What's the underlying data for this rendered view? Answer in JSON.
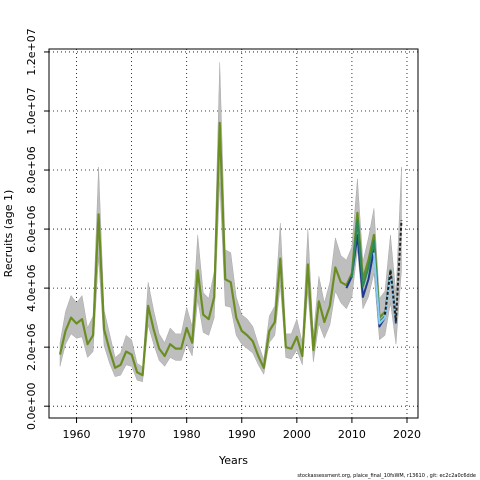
{
  "chart_data": {
    "type": "line",
    "xlabel": "Years",
    "ylabel": "Recruits (age 1)",
    "xlim": [
      1955,
      2022
    ],
    "ylim": [
      -400000,
      12100000
    ],
    "x_ticks": [
      1960,
      1970,
      1980,
      1990,
      2000,
      2010,
      2020
    ],
    "x_tick_labels": [
      "1960",
      "1970",
      "1980",
      "1990",
      "2000",
      "2010",
      "2020"
    ],
    "y_ticks": [
      0,
      2000000,
      4000000,
      6000000,
      8000000,
      10000000,
      12000000
    ],
    "y_tick_labels": [
      "0.0e+00",
      "2.0e+06",
      "4.0e+06",
      "6.0e+06",
      "8.0e+06",
      "1.0e+07",
      "1.2e+07"
    ],
    "grid": true,
    "grid_style": "dotted",
    "band_color": "#bebebe",
    "base_series": {
      "x": [
        1957,
        1958,
        1959,
        1960,
        1961,
        1962,
        1963,
        1964,
        1965,
        1966,
        1967,
        1968,
        1969,
        1970,
        1971,
        1972,
        1973,
        1974,
        1975,
        1976,
        1977,
        1978,
        1979,
        1980,
        1981,
        1982,
        1983,
        1984,
        1985,
        1986,
        1987,
        1988,
        1989,
        1990,
        1991,
        1992,
        1993,
        1994,
        1995,
        1996,
        1997,
        1998,
        1999,
        2000,
        2001,
        2002,
        2003,
        2004,
        2005,
        2006,
        2007,
        2008,
        2009,
        2010,
        2011,
        2012,
        2013,
        2014,
        2015,
        2016,
        2017,
        2018,
        2019
      ],
      "y": [
        1750000,
        2550000,
        3000000,
        2800000,
        2950000,
        2100000,
        2400000,
        6500000,
        2600000,
        1900000,
        1300000,
        1400000,
        1850000,
        1750000,
        1150000,
        1050000,
        3400000,
        2600000,
        1950000,
        1700000,
        2100000,
        1950000,
        1950000,
        2650000,
        2150000,
        4600000,
        3100000,
        2950000,
        3700000,
        9600000,
        4300000,
        4200000,
        3000000,
        2550000,
        2400000,
        2200000,
        1700000,
        1300000,
        2550000,
        2850000,
        5000000,
        2000000,
        1950000,
        2350000,
        1700000,
        4800000,
        1900000,
        3550000,
        2850000,
        3400000,
        4700000,
        4200000,
        4050000,
        4450000,
        6500000,
        4100000,
        4650000,
        5600000,
        2900000,
        3100000,
        4600000,
        2900000,
        6300000
      ],
      "lower": [
        1350000,
        2100000,
        2450000,
        2300000,
        2350000,
        1650000,
        1850000,
        5050000,
        2050000,
        1450000,
        1000000,
        1050000,
        1400000,
        1350000,
        880000,
        830000,
        2750000,
        2100000,
        1550000,
        1350000,
        1650000,
        1550000,
        1550000,
        2100000,
        1700000,
        3600000,
        2500000,
        2400000,
        3000000,
        7600000,
        3400000,
        3350000,
        2400000,
        2100000,
        1950000,
        1800000,
        1400000,
        1080000,
        2150000,
        2400000,
        4100000,
        1650000,
        1600000,
        1900000,
        1400000,
        3900000,
        1500000,
        2800000,
        2300000,
        2750000,
        3900000,
        3500000,
        3300000,
        3700000,
        5300000,
        3300000,
        3700000,
        4500000,
        2250000,
        2400000,
        3500000,
        2100000,
        4600000
      ],
      "upper": [
        2150000,
        3200000,
        3750000,
        3500000,
        3750000,
        2650000,
        3050000,
        8100000,
        3250000,
        2450000,
        1650000,
        1800000,
        2400000,
        2250000,
        1450000,
        1330000,
        4200000,
        3250000,
        2450000,
        2150000,
        2650000,
        2450000,
        2450000,
        3350000,
        2700000,
        5800000,
        3850000,
        3650000,
        4550000,
        11650000,
        5300000,
        5200000,
        3700000,
        3100000,
        2950000,
        2700000,
        2100000,
        1580000,
        3050000,
        3400000,
        6200000,
        2450000,
        2450000,
        2950000,
        2150000,
        6000000,
        2400000,
        4400000,
        3500000,
        4200000,
        5700000,
        5100000,
        4950000,
        5400000,
        7700000,
        4900000,
        5700000,
        6700000,
        3650000,
        3900000,
        5800000,
        3800000,
        8100000
      ]
    },
    "series": [
      {
        "name": "",
        "color": "#6b8e23",
        "x": [
          1957,
          1958,
          1959,
          1960,
          1961,
          1962,
          1963,
          1964,
          1965,
          1966,
          1967,
          1968,
          1969,
          1970,
          1971,
          1972,
          1973,
          1974,
          1975,
          1976,
          1977,
          1978,
          1979,
          1980,
          1981,
          1982,
          1983,
          1984,
          1985,
          1986,
          1987,
          1988,
          1989,
          1990,
          1991,
          1992,
          1993,
          1994,
          1995,
          1996,
          1997,
          1998,
          1999,
          2000,
          2001,
          2002,
          2003,
          2004,
          2005,
          2006,
          2007,
          2008,
          2009,
          2010,
          2011,
          2012,
          2013,
          2014,
          2015,
          2016
        ],
        "y": [
          1750000,
          2550000,
          3000000,
          2800000,
          2950000,
          2100000,
          2400000,
          6500000,
          2600000,
          1900000,
          1300000,
          1400000,
          1850000,
          1750000,
          1150000,
          1050000,
          3400000,
          2600000,
          1950000,
          1700000,
          2100000,
          1950000,
          1950000,
          2650000,
          2150000,
          4600000,
          3100000,
          2950000,
          3700000,
          9600000,
          4300000,
          4200000,
          3000000,
          2550000,
          2400000,
          2200000,
          1700000,
          1300000,
          2550000,
          2850000,
          5000000,
          2000000,
          1950000,
          2350000,
          1700000,
          4800000,
          1900000,
          3550000,
          2850000,
          3400000,
          4700000,
          4200000,
          4100000,
          4500000,
          6550000,
          4300000,
          4950000,
          5800000,
          3000000,
          3200000
        ]
      },
      {
        "name": "",
        "color": "#1e3c8c",
        "x": [
          2009,
          2010,
          2011,
          2012,
          2013,
          2014,
          2015,
          2016,
          2017,
          2018
        ],
        "y": [
          4000000,
          4400000,
          5800000,
          3700000,
          4300000,
          5300000,
          2700000,
          3000000,
          4600000,
          2800000
        ]
      },
      {
        "name": "",
        "color": "#2e8b57",
        "x": [
          2010,
          2011,
          2012,
          2013,
          2014,
          2015,
          2016,
          2017,
          2018
        ],
        "y": [
          4350000,
          6300000,
          4050000,
          4700000,
          5600000,
          2850000,
          3050000,
          4600000,
          2900000
        ]
      },
      {
        "name": "",
        "color": "#87cefa",
        "x": [
          2014,
          2015,
          2016,
          2017,
          2018
        ],
        "y": [
          5200000,
          2800000,
          3000000,
          4500000,
          2900000
        ]
      },
      {
        "name": "",
        "color": "#222222",
        "dash": true,
        "x": [
          2016,
          2017,
          2018,
          2019
        ],
        "y": [
          3100000,
          4600000,
          2900000,
          6300000
        ]
      }
    ]
  },
  "footer": "stockassessment.org, plaice_final_10fsWM, r13610 , git: ec2c2a0c6dde"
}
